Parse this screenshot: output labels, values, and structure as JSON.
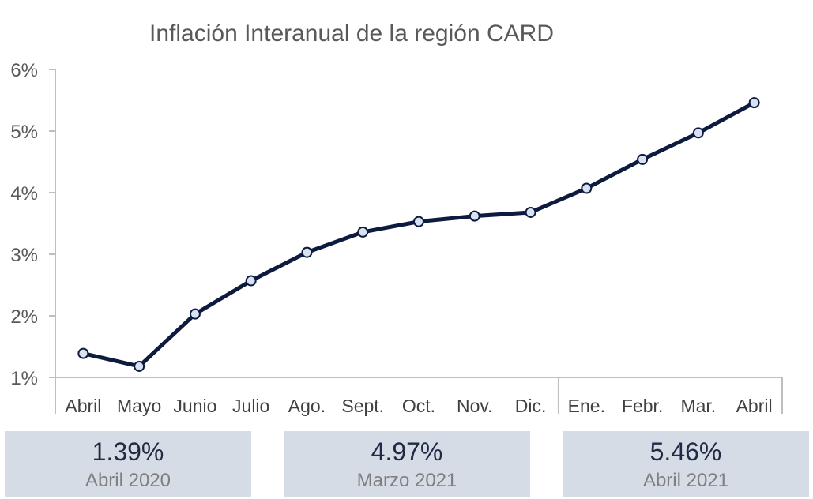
{
  "chart_data": {
    "type": "line",
    "title": "Inflación Interanual de la región CARD",
    "categories": [
      "Abril",
      "Mayo",
      "Junio",
      "Julio",
      "Ago.",
      "Sept.",
      "Oct.",
      "Nov.",
      "Dic.",
      "Ene.",
      "Febr.",
      "Mar.",
      "Abril"
    ],
    "series": [
      {
        "values": [
          1.39,
          1.18,
          2.03,
          2.57,
          3.03,
          3.36,
          3.53,
          3.62,
          3.68,
          4.07,
          4.54,
          4.97,
          5.46
        ]
      }
    ],
    "ylim": [
      1,
      6
    ],
    "yticks": [
      1,
      2,
      3,
      4,
      5,
      6
    ],
    "ytick_labels": [
      "1%",
      "2%",
      "3%",
      "4%",
      "5%",
      "6%"
    ],
    "grid": false,
    "legend": "none",
    "line_color": "#0d1b3e",
    "marker_fill": "#d9e2f3"
  },
  "summary_cards": [
    {
      "value": "1.39%",
      "label": "Abril 2020"
    },
    {
      "value": "4.97%",
      "label": "Marzo 2021"
    },
    {
      "value": "5.46%",
      "label": "Abril 2021"
    }
  ],
  "colors": {
    "card_bg": "#d6dce5",
    "axis": "#bfbfbf"
  }
}
